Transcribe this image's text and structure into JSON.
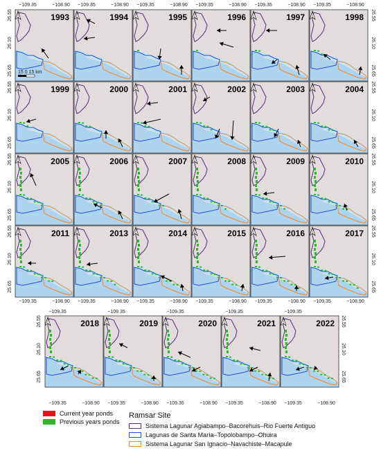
{
  "panels": [
    {
      "year": "1993"
    },
    {
      "year": "1994"
    },
    {
      "year": "1995"
    },
    {
      "year": "1996"
    },
    {
      "year": "1997"
    },
    {
      "year": "1998"
    },
    {
      "year": "1999"
    },
    {
      "year": "2000"
    },
    {
      "year": "2001"
    },
    {
      "year": "2002"
    },
    {
      "year": "2003"
    },
    {
      "year": "2004"
    },
    {
      "year": "2005"
    },
    {
      "year": "2006"
    },
    {
      "year": "2007"
    },
    {
      "year": "2008"
    },
    {
      "year": "2009"
    },
    {
      "year": "2010"
    },
    {
      "year": "2011"
    },
    {
      "year": "2013"
    },
    {
      "year": "2014"
    },
    {
      "year": "2015"
    },
    {
      "year": "2016"
    },
    {
      "year": "2017"
    },
    {
      "year": "2018"
    },
    {
      "year": "2019"
    },
    {
      "year": "2020"
    },
    {
      "year": "2021"
    },
    {
      "year": "2022"
    }
  ],
  "axes": {
    "lon_ticks": [
      "−109.35",
      "−108.90"
    ],
    "lat_ticks": [
      "26.55",
      "26.10",
      "25.65"
    ]
  },
  "scale_bar": {
    "label": "15  0  15 km"
  },
  "legend": {
    "ponds": [
      {
        "label": "Current year ponds",
        "color": "#e8141c"
      },
      {
        "label": "Previous years ponds",
        "color": "#2eb82e"
      }
    ],
    "ramsar_title": "Ramsar Site",
    "ramsar_sites": [
      {
        "label": "Sistema Lagunar Agiabampo–Bacorehuis–Rio Fuerte Antiguo",
        "color": "#5b2b7a"
      },
      {
        "label": "Lagunas de Santa María–Topolobampo–Ohuira",
        "color": "#1f4fd6"
      },
      {
        "label": "Sistema Lagunar San Ignacio–Navachiste–Macapule",
        "color": "#f08a2c"
      }
    ]
  },
  "colors": {
    "land": "#e3dcdc",
    "water": "#aed3ef",
    "frame": "#333333"
  }
}
